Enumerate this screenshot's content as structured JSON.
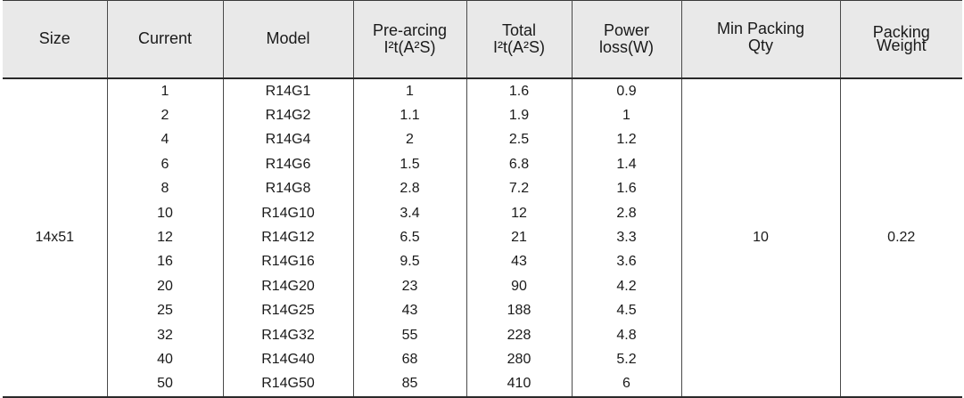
{
  "header": {
    "size": "Size",
    "current": "Current",
    "model": "Model",
    "prearcing_line1": "Pre-arcing",
    "prearcing_line2": "I²t(A²S)",
    "total_line1": "Total",
    "total_line2": "I²t(A²S)",
    "power_line1": "Power",
    "power_line2": "loss(W)",
    "minpack_line1": "Min Packing",
    "minpack_line2": "Qty",
    "weight_line1": "Packing",
    "weight_line2": "Weight"
  },
  "merged": {
    "size": "14x51",
    "min_packing_qty": "10",
    "packing_weight": "0.22"
  },
  "rows": [
    {
      "current": "1",
      "model": "R14G1",
      "prearcing": "1",
      "total": "1.6",
      "power": "0.9"
    },
    {
      "current": "2",
      "model": "R14G2",
      "prearcing": "1.1",
      "total": "1.9",
      "power": "1"
    },
    {
      "current": "4",
      "model": "R14G4",
      "prearcing": "2",
      "total": "2.5",
      "power": "1.2"
    },
    {
      "current": "6",
      "model": "R14G6",
      "prearcing": "1.5",
      "total": "6.8",
      "power": "1.4"
    },
    {
      "current": "8",
      "model": "R14G8",
      "prearcing": "2.8",
      "total": "7.2",
      "power": "1.6"
    },
    {
      "current": "10",
      "model": "R14G10",
      "prearcing": "3.4",
      "total": "12",
      "power": "2.8"
    },
    {
      "current": "12",
      "model": "R14G12",
      "prearcing": "6.5",
      "total": "21",
      "power": "3.3"
    },
    {
      "current": "16",
      "model": "R14G16",
      "prearcing": "9.5",
      "total": "43",
      "power": "3.6"
    },
    {
      "current": "20",
      "model": "R14G20",
      "prearcing": "23",
      "total": "90",
      "power": "4.2"
    },
    {
      "current": "25",
      "model": "R14G25",
      "prearcing": "43",
      "total": "188",
      "power": "4.5"
    },
    {
      "current": "32",
      "model": "R14G32",
      "prearcing": "55",
      "total": "228",
      "power": "4.8"
    },
    {
      "current": "40",
      "model": "R14G40",
      "prearcing": "68",
      "total": "280",
      "power": "5.2"
    },
    {
      "current": "50",
      "model": "R14G50",
      "prearcing": "85",
      "total": "410",
      "power": "6"
    }
  ]
}
